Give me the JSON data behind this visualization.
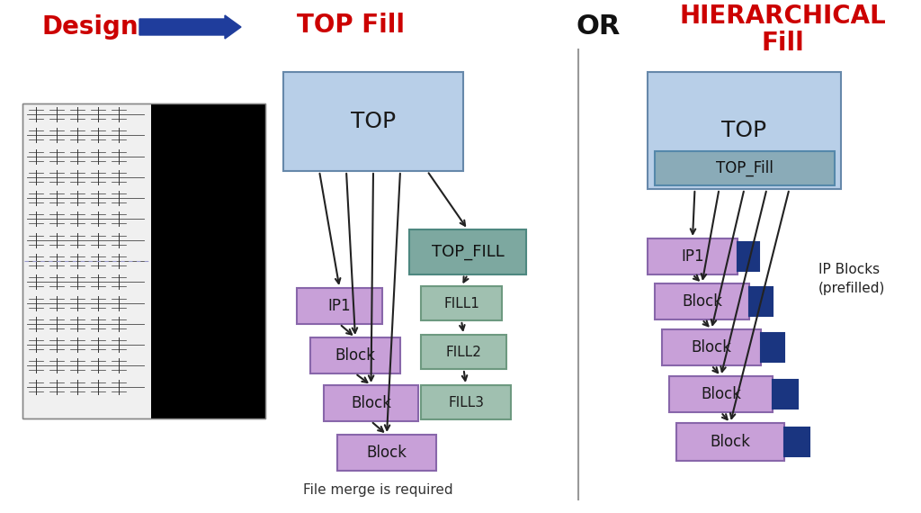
{
  "bg_color": "#ffffff",
  "title_design": "Design",
  "title_top_fill": "TOP Fill",
  "title_or": "OR",
  "title_hier_line1": "HIERARCHICAL",
  "title_hier_line2": "Fill",
  "design_color": "#cc0000",
  "top_fill_title_color": "#cc0000",
  "or_color": "#111111",
  "hier_color": "#cc0000",
  "arrow_big_color": "#1f3d9c",
  "top_box_color": "#b8cfe8",
  "top_box_edge": "#6688aa",
  "ip1_color": "#c8a0d8",
  "ip1_edge": "#8866aa",
  "block_color": "#c8a0d8",
  "block_edge": "#8866aa",
  "top_fill_box_color": "#7da8a0",
  "top_fill_box_edge": "#4d8880",
  "fill_box_color": "#a0c0b0",
  "fill_box_edge": "#6d9980",
  "top_fill_inner_color": "#8aabb8",
  "top_fill_inner_edge": "#5588aa",
  "dark_blue_color": "#1a3580",
  "line_color": "#222222",
  "divider_color": "#999999",
  "file_merge_text": "File merge is required",
  "ip_blocks_text": "IP Blocks\n(prefilled)"
}
